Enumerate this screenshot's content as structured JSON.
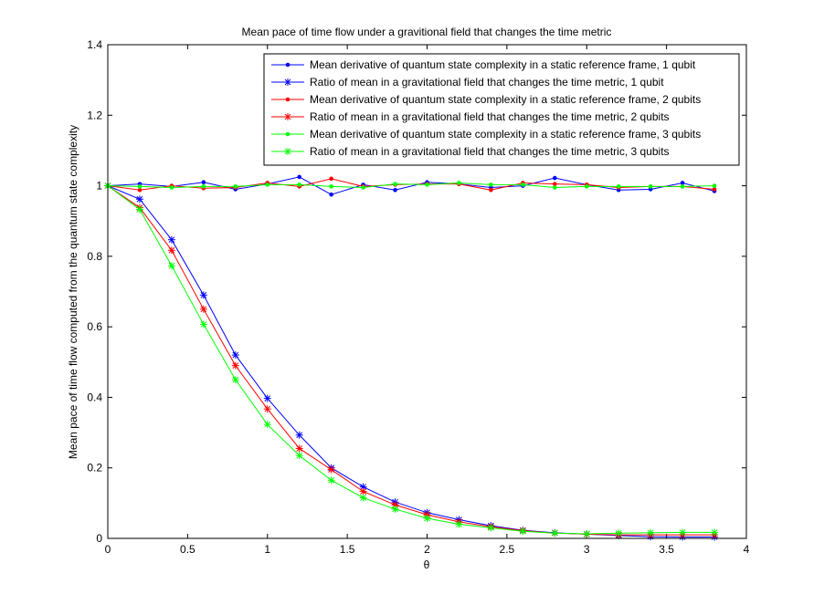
{
  "chart_data": {
    "type": "line",
    "title": "Mean pace of time flow under a gravitional field that changes the time metric",
    "xlabel": "θ",
    "ylabel": "Mean pace of time flow computed from the quantum state complexity",
    "xlim": [
      0,
      4
    ],
    "ylim": [
      0,
      1.4
    ],
    "xticks": [
      0,
      0.5,
      1,
      1.5,
      2,
      2.5,
      3,
      3.5,
      4
    ],
    "xtick_labels": [
      "0",
      "0.5",
      "1",
      "1.5",
      "2",
      "2.5",
      "3",
      "3.5",
      "4"
    ],
    "yticks": [
      0,
      0.2,
      0.4,
      0.6,
      0.8,
      1,
      1.2,
      1.4
    ],
    "ytick_labels": [
      "0",
      "0.2",
      "0.4",
      "0.6",
      "0.8",
      "1",
      "1.2",
      "1.4"
    ],
    "grid": false,
    "legend_position": "top-right",
    "x": [
      0,
      0.2,
      0.4,
      0.6,
      0.8,
      1.0,
      1.2,
      1.4,
      1.6,
      1.8,
      2.0,
      2.2,
      2.4,
      2.6,
      2.8,
      3.0,
      3.2,
      3.4,
      3.6,
      3.8
    ],
    "series": [
      {
        "name": "Mean derivative of quantum state complexity in a static reference frame, 1 qubit",
        "color": "#0000ff",
        "marker": "dot",
        "values": [
          1.0,
          1.005,
          0.998,
          1.01,
          0.99,
          1.005,
          1.025,
          0.975,
          1.003,
          0.988,
          1.01,
          1.005,
          0.995,
          1.0,
          1.022,
          1.003,
          0.988,
          0.99,
          1.008,
          0.985
        ]
      },
      {
        "name": "Ratio of mean in a gravitational field that changes the time metric, 1 qubit",
        "color": "#0000ff",
        "marker": "star",
        "values": [
          1.0,
          0.962,
          0.847,
          0.69,
          0.52,
          0.397,
          0.293,
          0.2,
          0.146,
          0.103,
          0.073,
          0.053,
          0.036,
          0.023,
          0.016,
          0.012,
          0.008,
          0.005,
          0.004,
          0.004
        ]
      },
      {
        "name": "Mean derivative of quantum state complexity in a static reference frame, 2 qubits",
        "color": "#ff0000",
        "marker": "dot",
        "values": [
          1.0,
          0.988,
          1.0,
          0.993,
          0.995,
          1.008,
          0.998,
          1.02,
          0.998,
          1.003,
          1.005,
          1.005,
          0.988,
          1.008,
          1.005,
          1.003,
          0.995,
          0.998,
          0.998,
          0.99
        ]
      },
      {
        "name": "Ratio of mean in a gravitational field that changes the time metric, 2 qubits",
        "color": "#ff0000",
        "marker": "star",
        "values": [
          1.0,
          0.938,
          0.817,
          0.65,
          0.49,
          0.367,
          0.255,
          0.195,
          0.133,
          0.095,
          0.067,
          0.047,
          0.033,
          0.022,
          0.015,
          0.012,
          0.01,
          0.01,
          0.01,
          0.01
        ]
      },
      {
        "name": "Mean derivative of quantum state complexity in a static reference frame, 3 qubits",
        "color": "#00ff00",
        "marker": "dot",
        "values": [
          1.0,
          0.998,
          0.995,
          0.998,
          0.998,
          1.003,
          1.003,
          0.998,
          0.995,
          1.005,
          1.003,
          1.008,
          1.003,
          1.003,
          0.995,
          0.998,
          0.998,
          0.998,
          0.998,
          1.0
        ]
      },
      {
        "name": "Ratio of mean in a gravitational field that changes the time metric, 3 qubits",
        "color": "#00ff00",
        "marker": "star",
        "values": [
          1.0,
          0.933,
          0.773,
          0.607,
          0.45,
          0.323,
          0.235,
          0.165,
          0.115,
          0.083,
          0.057,
          0.04,
          0.03,
          0.02,
          0.015,
          0.013,
          0.015,
          0.016,
          0.017,
          0.017
        ]
      }
    ]
  }
}
